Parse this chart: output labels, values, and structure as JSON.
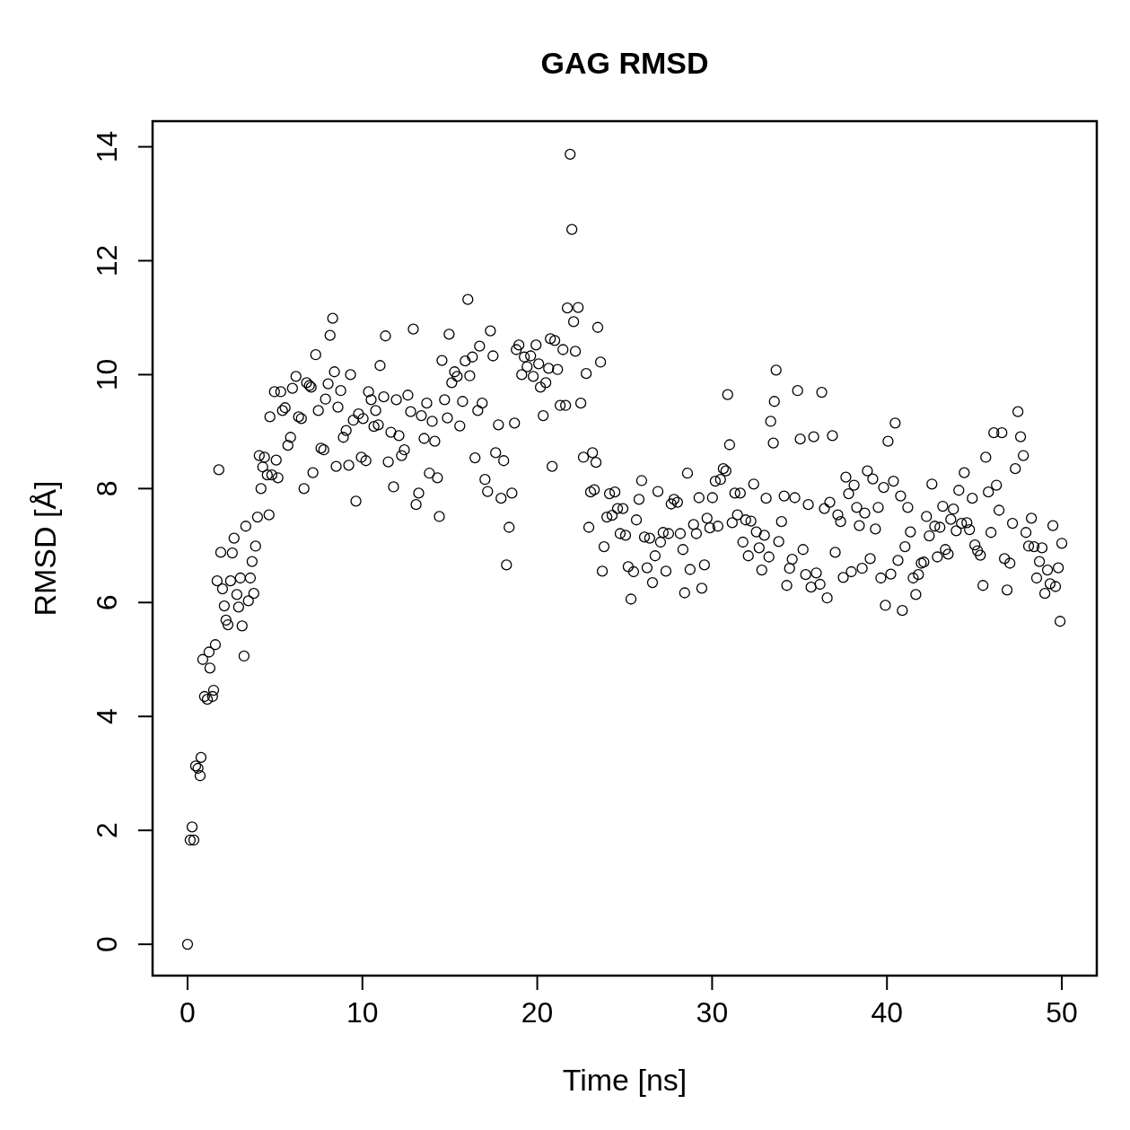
{
  "chart_data": {
    "type": "scatter",
    "title": "GAG RMSD",
    "xlabel": "Time [ns]",
    "ylabel": "RMSD [Å]",
    "xlim": [
      -2,
      52
    ],
    "ylim": [
      -0.55,
      14.45
    ],
    "xticks": [
      0,
      10,
      20,
      30,
      40,
      50
    ],
    "yticks": [
      0,
      2,
      4,
      6,
      8,
      10,
      12,
      14
    ],
    "marker": "circle",
    "series": [
      {
        "color": "#000000",
        "x": [
          0,
          0.15,
          0.26,
          0.36,
          0.46,
          0.6,
          0.72,
          0.77,
          0.87,
          0.97,
          1.13,
          1.23,
          1.28,
          1.43,
          1.49,
          1.59,
          1.69,
          1.79,
          1.9,
          2.0,
          2.1,
          2.2,
          2.31,
          2.46,
          2.56,
          2.66,
          2.82,
          2.92,
          3.02,
          3.12,
          3.23,
          3.33,
          3.48,
          3.59,
          3.69,
          3.79,
          3.89,
          4.0,
          4.1,
          4.2,
          4.3,
          4.4,
          4.56,
          4.66,
          4.71,
          4.82,
          4.97,
          5.07,
          5.17,
          5.33,
          5.43,
          5.58,
          5.74,
          5.89,
          6.0,
          6.2,
          6.35,
          6.51,
          6.66,
          6.81,
          6.97,
          7.07,
          7.17,
          7.33,
          7.48,
          7.63,
          7.79,
          7.89,
          8.04,
          8.15,
          8.3,
          8.4,
          8.5,
          8.6,
          8.76,
          8.91,
          9.07,
          9.22,
          9.32,
          9.48,
          9.63,
          9.78,
          9.94,
          10.04,
          10.2,
          10.35,
          10.5,
          10.66,
          10.76,
          10.91,
          11.01,
          11.22,
          11.32,
          11.48,
          11.63,
          11.78,
          11.94,
          12.09,
          12.24,
          12.4,
          12.6,
          12.76,
          12.91,
          13.07,
          13.22,
          13.37,
          13.53,
          13.68,
          13.83,
          13.99,
          14.14,
          14.29,
          14.4,
          14.55,
          14.7,
          14.86,
          14.96,
          15.11,
          15.27,
          15.42,
          15.57,
          15.73,
          15.88,
          16.03,
          16.14,
          16.29,
          16.44,
          16.6,
          16.7,
          16.85,
          17.01,
          17.16,
          17.32,
          17.47,
          17.62,
          17.78,
          17.93,
          18.08,
          18.24,
          18.39,
          18.55,
          18.7,
          18.8,
          18.95,
          19.11,
          19.26,
          19.42,
          19.62,
          19.77,
          19.93,
          20.08,
          20.18,
          20.34,
          20.49,
          20.65,
          20.75,
          20.85,
          21.0,
          21.16,
          21.31,
          21.47,
          21.62,
          21.72,
          21.88,
          21.98,
          22.08,
          22.18,
          22.34,
          22.49,
          22.64,
          22.8,
          22.95,
          23.05,
          23.16,
          23.26,
          23.36,
          23.46,
          23.62,
          23.72,
          23.82,
          23.98,
          24.13,
          24.28,
          24.44,
          24.59,
          24.74,
          24.9,
          25.05,
          25.2,
          25.36,
          25.51,
          25.67,
          25.82,
          25.97,
          26.13,
          26.28,
          26.43,
          26.59,
          26.74,
          26.9,
          27.05,
          27.2,
          27.36,
          27.51,
          27.66,
          27.82,
          28.02,
          28.18,
          28.33,
          28.43,
          28.59,
          28.74,
          28.94,
          29.1,
          29.25,
          29.41,
          29.56,
          29.71,
          29.87,
          30.02,
          30.18,
          30.33,
          30.48,
          30.64,
          30.79,
          30.89,
          31.0,
          31.15,
          31.3,
          31.45,
          31.61,
          31.76,
          31.92,
          32.07,
          32.22,
          32.38,
          32.53,
          32.69,
          32.84,
          32.99,
          33.09,
          33.25,
          33.35,
          33.5,
          33.56,
          33.66,
          33.81,
          33.97,
          34.12,
          34.27,
          34.43,
          34.58,
          34.73,
          34.89,
          35.04,
          35.2,
          35.35,
          35.5,
          35.66,
          35.81,
          35.96,
          36.17,
          36.27,
          36.42,
          36.58,
          36.73,
          36.88,
          37.04,
          37.19,
          37.35,
          37.5,
          37.65,
          37.81,
          37.96,
          38.12,
          38.27,
          38.42,
          38.58,
          38.73,
          38.88,
          39.04,
          39.19,
          39.34,
          39.5,
          39.65,
          39.81,
          39.91,
          40.06,
          40.22,
          40.37,
          40.47,
          40.63,
          40.78,
          40.88,
          41.03,
          41.19,
          41.34,
          41.5,
          41.65,
          41.8,
          41.96,
          42.11,
          42.26,
          42.42,
          42.57,
          42.73,
          42.88,
          43.03,
          43.19,
          43.34,
          43.5,
          43.65,
          43.8,
          43.96,
          44.11,
          44.26,
          44.42,
          44.57,
          44.72,
          44.88,
          45.03,
          45.18,
          45.34,
          45.49,
          45.65,
          45.8,
          45.95,
          46.11,
          46.26,
          46.41,
          46.57,
          46.72,
          46.87,
          47.03,
          47.18,
          47.34,
          47.49,
          47.64,
          47.8,
          47.95,
          48.1,
          48.26,
          48.41,
          48.56,
          48.72,
          48.87,
          49.03,
          49.18,
          49.33,
          49.49,
          49.64,
          49.8,
          49.9,
          50.0
        ],
        "values": [
          0,
          1.83,
          2.06,
          1.83,
          3.13,
          3.09,
          2.96,
          3.28,
          5.0,
          4.35,
          4.3,
          5.13,
          4.85,
          4.35,
          4.46,
          5.26,
          6.38,
          8.33,
          6.88,
          6.24,
          5.94,
          5.69,
          5.61,
          6.38,
          6.87,
          7.13,
          6.14,
          5.92,
          6.43,
          5.59,
          5.06,
          7.34,
          6.03,
          6.43,
          6.72,
          6.16,
          6.99,
          7.5,
          8.58,
          8.0,
          8.38,
          8.55,
          8.24,
          7.54,
          9.26,
          8.24,
          9.7,
          8.5,
          8.19,
          9.7,
          9.37,
          9.42,
          8.76,
          8.9,
          9.76,
          9.97,
          9.26,
          9.23,
          8.0,
          9.86,
          9.81,
          9.78,
          8.28,
          10.35,
          9.37,
          8.71,
          8.68,
          9.57,
          9.84,
          10.69,
          10.99,
          10.05,
          8.39,
          9.43,
          9.72,
          8.9,
          9.02,
          8.41,
          10.0,
          9.2,
          7.78,
          9.31,
          8.55,
          9.23,
          8.49,
          9.7,
          9.56,
          9.09,
          9.37,
          9.12,
          10.16,
          9.61,
          10.68,
          8.47,
          8.99,
          8.03,
          9.56,
          8.93,
          8.58,
          8.68,
          9.64,
          9.35,
          10.8,
          7.72,
          7.92,
          9.28,
          8.88,
          9.5,
          8.27,
          9.18,
          8.83,
          8.19,
          7.51,
          10.25,
          9.56,
          9.24,
          10.71,
          9.86,
          10.05,
          9.97,
          9.1,
          9.53,
          10.24,
          11.32,
          9.98,
          10.31,
          8.54,
          9.37,
          10.5,
          9.5,
          8.16,
          7.95,
          10.77,
          10.33,
          8.63,
          9.12,
          7.83,
          8.49,
          6.66,
          7.32,
          7.92,
          9.15,
          10.44,
          10.52,
          10.0,
          10.31,
          10.14,
          10.33,
          9.97,
          10.52,
          10.19,
          9.78,
          9.28,
          9.86,
          10.11,
          10.63,
          8.39,
          10.6,
          10.09,
          9.46,
          10.44,
          9.46,
          11.17,
          13.87,
          12.55,
          10.93,
          10.41,
          11.18,
          9.5,
          8.55,
          10.02,
          7.32,
          7.94,
          8.63,
          7.98,
          8.46,
          10.83,
          10.22,
          6.55,
          6.98,
          7.5,
          7.91,
          7.53,
          7.94,
          7.65,
          7.21,
          7.65,
          7.18,
          6.63,
          6.06,
          6.54,
          7.45,
          7.81,
          8.14,
          7.15,
          6.61,
          7.13,
          6.35,
          6.82,
          7.95,
          7.06,
          7.23,
          6.55,
          7.21,
          7.73,
          7.81,
          7.76,
          7.21,
          6.93,
          6.17,
          8.27,
          6.58,
          7.37,
          7.21,
          7.84,
          6.25,
          6.66,
          7.48,
          7.31,
          7.84,
          8.13,
          7.34,
          8.16,
          8.35,
          8.31,
          9.65,
          8.77,
          7.4,
          7.92,
          7.54,
          7.92,
          7.06,
          7.45,
          6.82,
          7.43,
          8.08,
          7.24,
          6.96,
          6.57,
          7.18,
          7.83,
          6.8,
          9.18,
          8.8,
          9.53,
          10.08,
          7.07,
          7.42,
          7.87,
          6.3,
          6.6,
          6.76,
          7.84,
          9.72,
          8.87,
          6.93,
          6.49,
          7.72,
          6.27,
          8.91,
          6.52,
          6.32,
          9.69,
          7.65,
          6.08,
          7.76,
          8.93,
          6.88,
          7.54,
          7.42,
          6.44,
          8.2,
          7.91,
          6.54,
          8.06,
          7.67,
          7.35,
          6.6,
          7.57,
          8.31,
          6.77,
          8.17,
          7.29,
          7.67,
          6.43,
          8.02,
          5.95,
          8.83,
          6.5,
          8.13,
          9.15,
          6.74,
          7.87,
          5.86,
          6.98,
          7.67,
          7.24,
          6.43,
          6.14,
          6.49,
          6.69,
          6.71,
          7.51,
          7.17,
          8.08,
          7.34,
          6.8,
          7.32,
          7.69,
          6.93,
          6.85,
          7.46,
          7.64,
          7.26,
          7.97,
          7.39,
          8.28,
          7.4,
          7.28,
          7.83,
          7.01,
          6.91,
          6.83,
          6.3,
          8.55,
          7.94,
          7.23,
          8.98,
          8.06,
          7.62,
          8.98,
          6.77,
          6.22,
          6.69,
          7.39,
          8.35,
          9.35,
          8.91,
          8.58,
          7.23,
          6.99,
          7.48,
          6.98,
          6.43,
          6.72,
          6.96,
          6.16,
          6.57,
          6.33,
          7.35,
          6.28,
          6.61,
          5.67,
          7.04
        ]
      }
    ]
  }
}
